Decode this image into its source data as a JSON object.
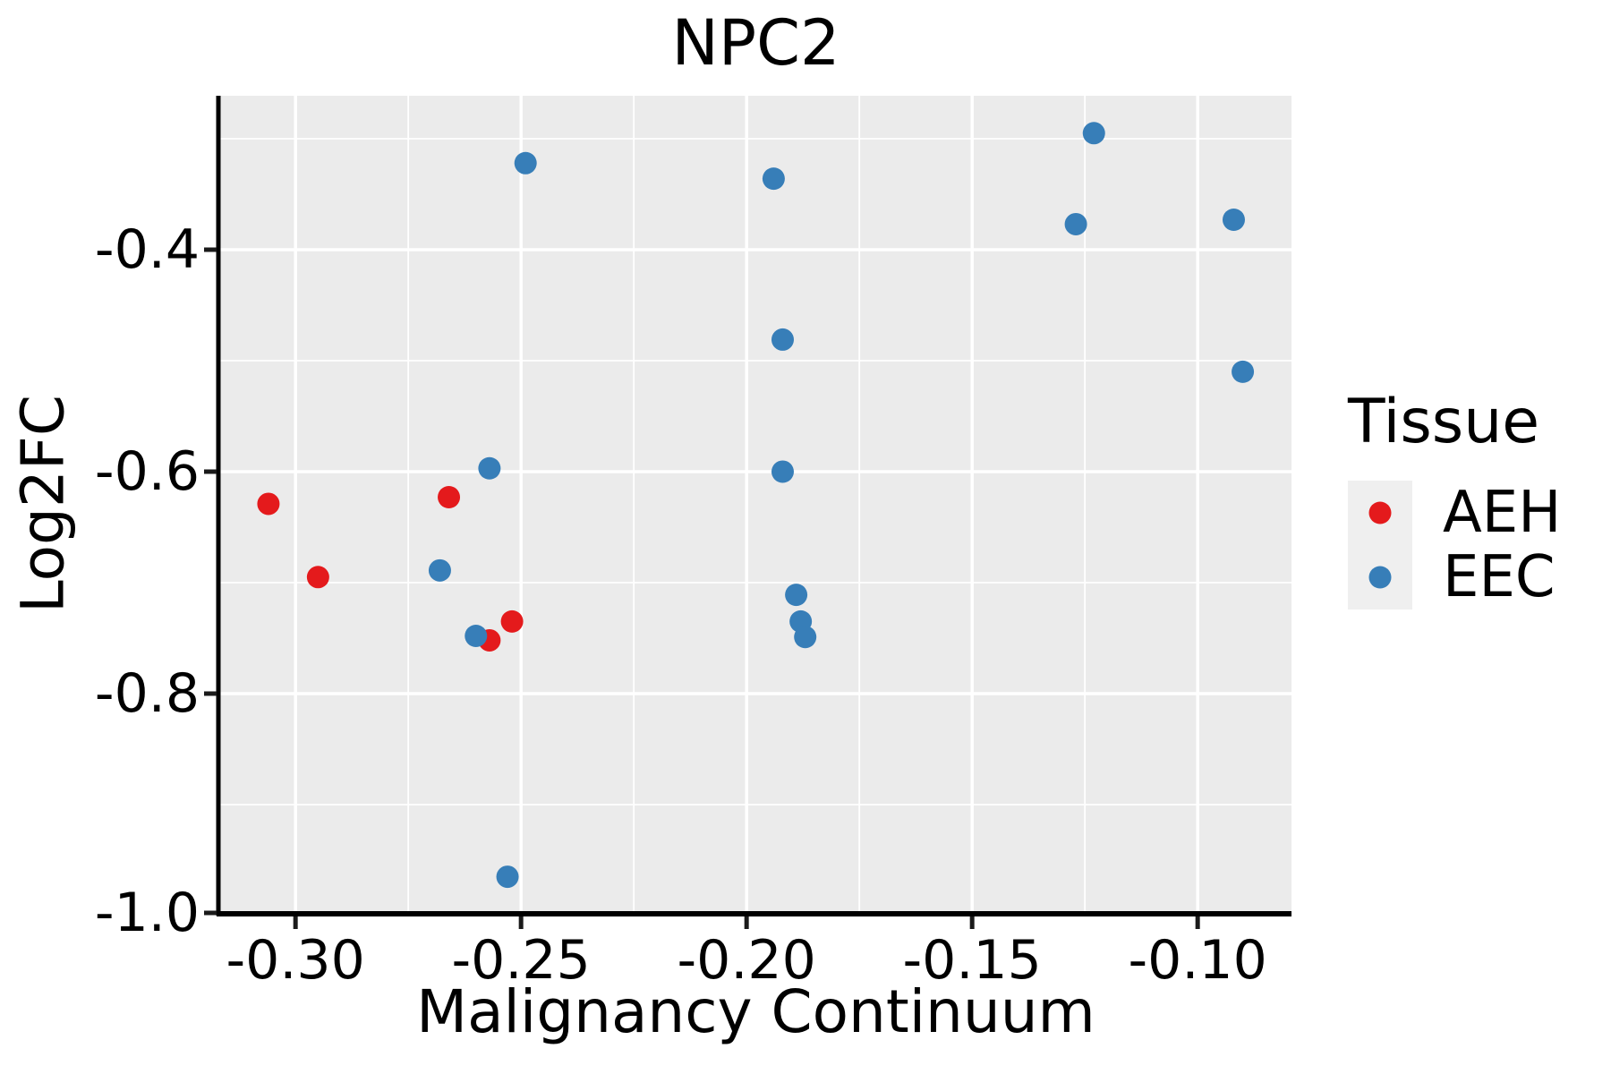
{
  "chart_data": {
    "type": "scatter",
    "title": "NPC2",
    "xlabel": "Malignancy Continuum",
    "ylabel": "Log2FC",
    "xlim": [
      -0.3167,
      -0.0792
    ],
    "ylim": [
      -0.9976,
      -0.2613
    ],
    "x_major_ticks": [
      {
        "value": -0.3,
        "label": "-0.30"
      },
      {
        "value": -0.25,
        "label": "-0.25"
      },
      {
        "value": -0.2,
        "label": "-0.20"
      },
      {
        "value": -0.15,
        "label": "-0.15"
      },
      {
        "value": -0.1,
        "label": "-0.10"
      }
    ],
    "y_major_ticks": [
      {
        "value": -0.4,
        "label": "-0.4"
      },
      {
        "value": -0.6,
        "label": "-0.6"
      },
      {
        "value": -0.8,
        "label": "-0.8"
      },
      {
        "value": -1.0,
        "label": "-1.0"
      }
    ],
    "x_minor_gridlines": [
      -0.275,
      -0.225,
      -0.175,
      -0.125
    ],
    "y_minor_gridlines": [
      -0.3,
      -0.5,
      -0.7,
      -0.9
    ],
    "grid": "on",
    "legend_position": "right",
    "series": [
      {
        "name": "AEH",
        "color": "#E41A1C",
        "points": [
          [
            -0.306,
            -0.629
          ],
          [
            -0.295,
            -0.695
          ],
          [
            -0.266,
            -0.623
          ],
          [
            -0.257,
            -0.752
          ],
          [
            -0.252,
            -0.735
          ]
        ]
      },
      {
        "name": "EEC",
        "color": "#377EB8",
        "points": [
          [
            -0.268,
            -0.689
          ],
          [
            -0.26,
            -0.748
          ],
          [
            -0.257,
            -0.597
          ],
          [
            -0.253,
            -0.965
          ],
          [
            -0.249,
            -0.322
          ],
          [
            -0.194,
            -0.336
          ],
          [
            -0.192,
            -0.481
          ],
          [
            -0.192,
            -0.6
          ],
          [
            -0.189,
            -0.711
          ],
          [
            -0.188,
            -0.735
          ],
          [
            -0.187,
            -0.749
          ],
          [
            -0.127,
            -0.377
          ],
          [
            -0.123,
            -0.295
          ],
          [
            -0.092,
            -0.373
          ],
          [
            -0.09,
            -0.51
          ]
        ]
      }
    ]
  },
  "legend": {
    "title": "Tissue",
    "items": [
      {
        "label": "AEH",
        "color": "#E41A1C"
      },
      {
        "label": "EEC",
        "color": "#377EB8"
      }
    ]
  },
  "style": {
    "panel_bg": "#EBEBEB",
    "grid_color": "#FFFFFF",
    "axis_color": "#000000",
    "tick_color": "#1a1a1a",
    "legend_key_bg": "#EFEFEF",
    "marker_radius": 12.5
  }
}
